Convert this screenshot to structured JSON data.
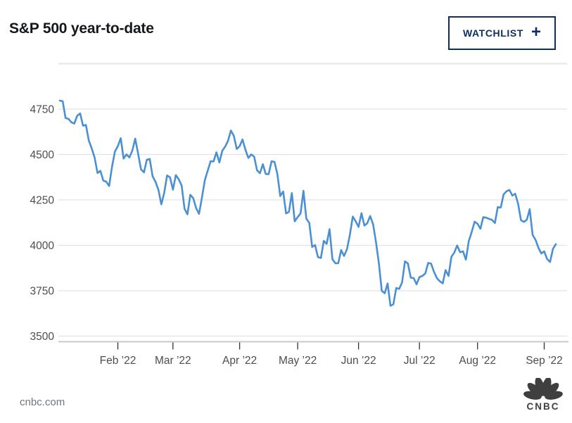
{
  "header": {
    "title": "S&P 500 year-to-date",
    "watchlist_button": {
      "label": "WATCHLIST",
      "plus_icon": "+"
    }
  },
  "chart_data": {
    "type": "line",
    "title": "S&P 500 year-to-date",
    "xlabel": "",
    "ylabel": "",
    "ylim": [
      3500,
      5000
    ],
    "grid": true,
    "legend": "none",
    "y_ticks": [
      3500,
      3750,
      4000,
      4250,
      4500,
      4750
    ],
    "x_ticks": [
      {
        "label": "Feb ’22",
        "index": 20
      },
      {
        "label": "Mar ’22",
        "index": 39
      },
      {
        "label": "Apr ’22",
        "index": 62
      },
      {
        "label": "May ’22",
        "index": 82
      },
      {
        "label": "Jun ’22",
        "index": 103
      },
      {
        "label": "Jul ’22",
        "index": 124
      },
      {
        "label": "Aug ’22",
        "index": 144
      },
      {
        "label": "Sep ’22",
        "index": 167
      }
    ],
    "colors": {
      "line": "#4a90d2",
      "gridline": "#dedede",
      "top_border": "#e5e5e5",
      "axis_line": "#c9c9c9",
      "tick": "#333333",
      "label": "#4d4d4d"
    },
    "series": [
      {
        "name": "S&P 500",
        "values": [
          4796.56,
          4793.54,
          4700.58,
          4696.05,
          4677.03,
          4670.29,
          4713.07,
          4726.35,
          4659.03,
          4662.85,
          4577.11,
          4532.76,
          4482.73,
          4397.94,
          4410.13,
          4356.45,
          4349.93,
          4326.51,
          4431.85,
          4515.55,
          4546.54,
          4589.38,
          4477.44,
          4500.53,
          4483.87,
          4521.54,
          4587.18,
          4504.08,
          4418.64,
          4401.67,
          4471.07,
          4475.01,
          4380.26,
          4348.87,
          4304.76,
          4225.5,
          4288.7,
          4384.65,
          4373.94,
          4306.26,
          4386.54,
          4363.49,
          4328.87,
          4201.09,
          4170.7,
          4277.88,
          4259.52,
          4204.31,
          4173.11,
          4262.45,
          4357.86,
          4411.67,
          4463.12,
          4461.18,
          4511.61,
          4456.24,
          4520.16,
          4543.06,
          4575.52,
          4631.6,
          4602.45,
          4530.41,
          4545.86,
          4582.64,
          4525.12,
          4481.15,
          4500.21,
          4488.28,
          4412.53,
          4397.45,
          4446.59,
          4392.59,
          4391.69,
          4462.21,
          4459.45,
          4393.66,
          4271.78,
          4296.12,
          4175.2,
          4183.96,
          4287.5,
          4131.93,
          4155.38,
          4175.48,
          4300.17,
          4146.87,
          4123.34,
          3991.24,
          4001.05,
          3935.18,
          3930.08,
          4023.89,
          4008.01,
          4088.85,
          3923.68,
          3900.79,
          3901.36,
          3973.75,
          3941.48,
          3978.73,
          4057.84,
          4158.24,
          4132.15,
          4101.23,
          4176.82,
          4108.54,
          4121.43,
          4160.68,
          4115.77,
          4017.82,
          3900.86,
          3749.63,
          3735.48,
          3789.99,
          3666.77,
          3674.84,
          3764.79,
          3759.89,
          3795.73,
          3911.74,
          3900.11,
          3821.55,
          3818.83,
          3785.38,
          3825.33,
          3831.39,
          3845.08,
          3902.62,
          3899.38,
          3854.43,
          3818.8,
          3801.78,
          3790.38,
          3863.16,
          3830.85,
          3936.69,
          3959.9,
          3998.95,
          3961.63,
          3966.84,
          3921.05,
          4023.61,
          4072.43,
          4130.29,
          4118.63,
          4091.19,
          4155.17,
          4151.94,
          4145.19,
          4140.06,
          4122.47,
          4210.24,
          4207.27,
          4280.15,
          4297.14,
          4305.2,
          4274.04,
          4283.74,
          4228.48,
          4137.99,
          4128.73,
          4140.77,
          4199.12,
          4057.66,
          4030.61,
          3986.16,
          3955.0,
          3966.85,
          3924.26,
          3908.19,
          3979.87,
          4006.18
        ]
      }
    ]
  },
  "footer": {
    "source": "cnbc.com",
    "logo": "CNBC"
  }
}
